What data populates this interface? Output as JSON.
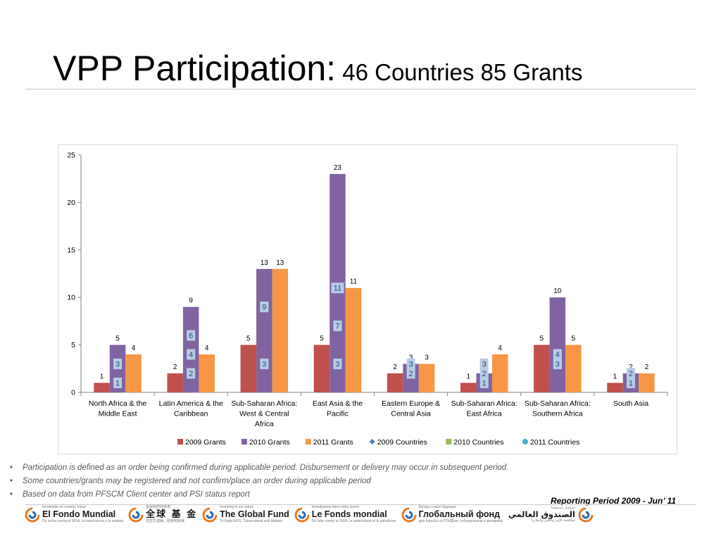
{
  "slide": {
    "title_main": "VPP Participation:",
    "title_sub": " 46 Countries 85 Grants",
    "notes": [
      "Participation is defined as an order being confirmed during applicable period. Disbursement or delivery may occur in subsequent period.",
      "Some countries/grants may be registered and not confirm/place an order during applicable period",
      "Based on data from PFSCM Client center and PSI status report"
    ],
    "reporting_period": "Reporting Period 2009 - Jun’ 11",
    "logos": [
      {
        "tagline": "Invirtiendo en nuestro futuro",
        "name": "El Fondo Mundial",
        "sub": "De lucha contra el SIDA, la tuberculosis y la malaria",
        "cls": ""
      },
      {
        "tagline": "投資我們的未來",
        "name": "全球 基 金",
        "sub": "抗击艾滋病、结核和疟疾",
        "cls": "zh"
      },
      {
        "tagline": "Investing in our future",
        "name": "The Global Fund",
        "sub": "To Fight AIDS, Tuberculosis and Malaria",
        "cls": ""
      },
      {
        "tagline": "Investissons dans notre avenir",
        "name": "Le Fonds mondial",
        "sub": "De lutte contre le SIDA, la tuberculose et le paludisme",
        "cls": ""
      },
      {
        "tagline": "Вклад в наше будущее",
        "name": "Глобальный фонд",
        "sub": "для борьбы со СПИДом, туберкулезом и малярией",
        "cls": ""
      },
      {
        "tagline": "استثمار مستقبلنا",
        "name": "الصندوق العالمي",
        "sub": "لمكافحة الإيدز والسل والملاريا",
        "cls": "ar"
      }
    ]
  },
  "colors": {
    "grants_2009": "#C0504D",
    "grants_2010": "#8064A2",
    "grants_2011": "#F79646",
    "countries_2009": "#4F81BD",
    "countries_2010": "#9BBB59",
    "countries_2011": "#4BACC6",
    "country_label_bg": "#B8CCE4",
    "country_label_text": "#1F497D"
  },
  "chart_data": {
    "type": "bar",
    "categories": [
      [
        "North Africa & the",
        "Middle East"
      ],
      [
        "Latin America & the",
        "Caribbean"
      ],
      [
        "Sub-Saharan Africa:",
        "West & Central",
        "Africa"
      ],
      [
        "East Asia & the",
        "Pacific"
      ],
      [
        "Eastern Europe &",
        "Central Asia"
      ],
      [
        "Sub-Saharan Africa:",
        "East Africa"
      ],
      [
        "Sub-Saharan Africa:",
        "Southern Africa"
      ],
      [
        "South Asia"
      ]
    ],
    "series": [
      {
        "name": "2009 Grants",
        "kind": "bar",
        "color_key": "grants_2009",
        "values": [
          1,
          2,
          5,
          5,
          2,
          1,
          5,
          1
        ]
      },
      {
        "name": "2010 Grants",
        "kind": "bar",
        "color_key": "grants_2010",
        "values": [
          5,
          9,
          13,
          23,
          3,
          2,
          10,
          2
        ]
      },
      {
        "name": "2011 Grants",
        "kind": "bar",
        "color_key": "grants_2011",
        "values": [
          4,
          4,
          13,
          11,
          3,
          4,
          5,
          2
        ]
      },
      {
        "name": "2009 Countries",
        "kind": "marker",
        "marker": "diamond",
        "color_key": "countries_2009",
        "values": [
          1,
          2,
          3,
          3,
          2,
          1,
          3,
          1
        ]
      },
      {
        "name": "2010 Countries",
        "kind": "marker",
        "marker": "square",
        "color_key": "countries_2010",
        "values": [
          3,
          6,
          9,
          11,
          3,
          2,
          4,
          2
        ]
      },
      {
        "name": "2011 Countries",
        "kind": "marker",
        "marker": "circle",
        "color_key": "countries_2011",
        "values": [
          3,
          4,
          9,
          7,
          3,
          3,
          3,
          2
        ]
      }
    ],
    "ylim": [
      0,
      25
    ],
    "yticks": [
      0,
      5,
      10,
      15,
      20,
      25
    ],
    "grid": false,
    "legend_position": "bottom",
    "title": "",
    "xlabel": "",
    "ylabel": ""
  }
}
